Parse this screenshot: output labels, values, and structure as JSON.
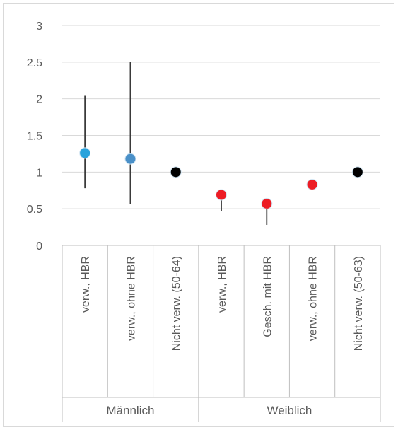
{
  "chart_data": {
    "type": "scatter",
    "title": "",
    "xlabel": "",
    "ylabel": "",
    "ylim": [
      0,
      3
    ],
    "yticks": [
      "0",
      "0.5",
      "1",
      "1.5",
      "2",
      "2.5",
      "3"
    ],
    "grid": true,
    "legend": "none",
    "groups": [
      {
        "name": "Männlich",
        "start": 0,
        "end": 3
      },
      {
        "name": "Weiblich",
        "start": 3,
        "end": 7
      }
    ],
    "categories": [
      "verw., HBR",
      "verw., ohne HBR",
      "Nicht verw. (50-64)",
      "verw., HBR",
      "Gesch. mit HBR",
      "verw., ohne HBR",
      "Nicht verw. (50-63)"
    ],
    "values": [
      1.26,
      1.18,
      1.0,
      0.69,
      0.57,
      0.83,
      1.0
    ],
    "error_low": [
      0.78,
      0.56,
      null,
      0.47,
      0.28,
      null,
      null
    ],
    "error_high": [
      2.04,
      2.5,
      null,
      null,
      null,
      null,
      null
    ],
    "point_colors": [
      "#29a3dc",
      "#4a90c8",
      "#000000",
      "#ed1c24",
      "#ed1c24",
      "#ed1c24",
      "#000000"
    ]
  }
}
